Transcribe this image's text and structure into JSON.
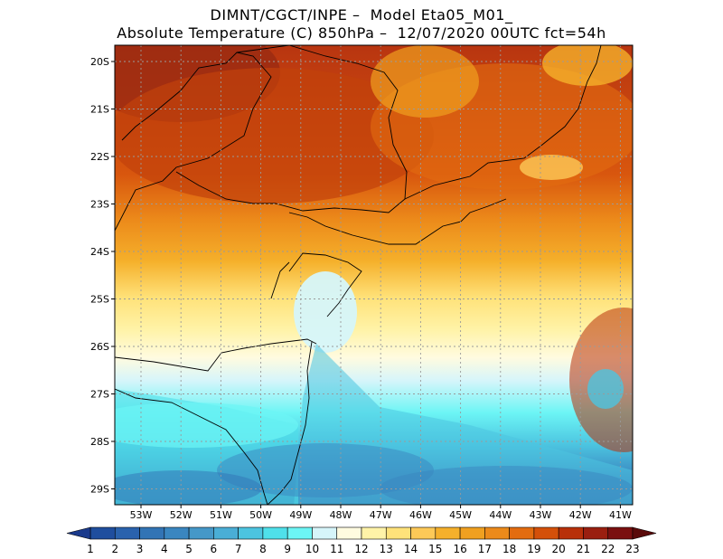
{
  "title_line1": "DIMNT/CGCT/INPE –  Model Eta05_M01_",
  "title_line2": "Absolute Temperature (C) 850hPa –  12/07/2020 00UTC fct=54h",
  "lat_labels": [
    "20S",
    "21S",
    "22S",
    "23S",
    "24S",
    "25S",
    "26S",
    "27S",
    "28S",
    "29S"
  ],
  "lon_labels": [
    "53W",
    "52W",
    "51W",
    "50W",
    "49W",
    "48W",
    "47W",
    "46W",
    "45W",
    "44W",
    "43W",
    "42W",
    "41W"
  ],
  "colorbar": {
    "labels": [
      "1",
      "2",
      "3",
      "4",
      "5",
      "6",
      "7",
      "8",
      "9",
      "10",
      "11",
      "12",
      "13",
      "14",
      "15",
      "16",
      "17",
      "18",
      "19",
      "20",
      "21",
      "22",
      "23"
    ],
    "colors": [
      "#1a3a8c",
      "#1f4e9e",
      "#2a62ad",
      "#3274b5",
      "#3a86c0",
      "#4598c8",
      "#4aaed6",
      "#4cc4e0",
      "#4fe0ea",
      "#6cf5f5",
      "#d6f5fa",
      "#fffbe0",
      "#fff3a8",
      "#ffe27a",
      "#fdc957",
      "#f5b02b",
      "#f0a020",
      "#ec8a1a",
      "#e36c10",
      "#d4500a",
      "#b8300a",
      "#9a1f10",
      "#7a1010",
      "#5a0a0a"
    ]
  },
  "legend_extremes": {
    "min_color": "#1a3a8c",
    "max_color": "#5a0a0a"
  }
}
